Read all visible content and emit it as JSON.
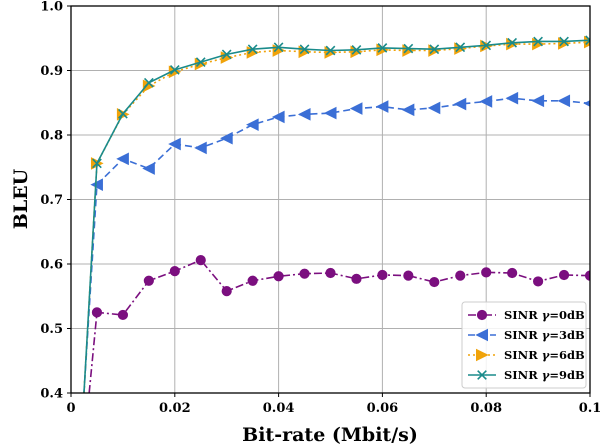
{
  "chart_data": {
    "type": "line",
    "xlabel": "Bit-rate (Mbit/s)",
    "ylabel": "BLEU",
    "xlim": [
      0,
      0.1
    ],
    "ylim": [
      0.4,
      1.0
    ],
    "xticks": [
      "0",
      "0.02",
      "0.04",
      "0.06",
      "0.08",
      "0.1"
    ],
    "yticks": [
      "0.4",
      "0.5",
      "0.6",
      "0.7",
      "0.8",
      "0.9",
      "1.0"
    ],
    "grid": true,
    "legend_position": "bottom-right",
    "series": [
      {
        "name": "SINR γ=0dB",
        "label_main": "SINR ",
        "label_gamma": "γ",
        "label_rest": "=0dB",
        "color": "#7b0f7f",
        "line_style": "dashdot",
        "marker": "circle",
        "x": [
          0.0035,
          0.005,
          0.01,
          0.015,
          0.02,
          0.025,
          0.03,
          0.035,
          0.04,
          0.045,
          0.05,
          0.055,
          0.06,
          0.065,
          0.07,
          0.075,
          0.08,
          0.085,
          0.09,
          0.095,
          0.1
        ],
        "y": [
          0.4,
          0.525,
          0.521,
          0.574,
          0.589,
          0.606,
          0.558,
          0.574,
          0.581,
          0.585,
          0.586,
          0.577,
          0.583,
          0.582,
          0.572,
          0.582,
          0.587,
          0.586,
          0.573,
          0.583,
          0.582
        ]
      },
      {
        "name": "SINR γ=3dB",
        "label_main": "SINR ",
        "label_gamma": "γ",
        "label_rest": "=3dB",
        "color": "#3b6fd6",
        "line_style": "dashed",
        "marker": "triangle-left",
        "x": [
          0.0025,
          0.005,
          0.01,
          0.015,
          0.02,
          0.025,
          0.03,
          0.035,
          0.04,
          0.045,
          0.05,
          0.055,
          0.06,
          0.065,
          0.07,
          0.075,
          0.08,
          0.085,
          0.09,
          0.095,
          0.1
        ],
        "y": [
          0.4,
          0.723,
          0.763,
          0.748,
          0.786,
          0.78,
          0.795,
          0.816,
          0.828,
          0.832,
          0.834,
          0.841,
          0.844,
          0.839,
          0.842,
          0.848,
          0.852,
          0.857,
          0.853,
          0.853,
          0.849
        ]
      },
      {
        "name": "SINR γ=6dB",
        "label_main": "SINR ",
        "label_gamma": "γ",
        "label_rest": "=6dB",
        "color": "#f0a30a",
        "line_style": "dotted",
        "marker": "triangle-right",
        "x": [
          0.0025,
          0.005,
          0.01,
          0.015,
          0.02,
          0.025,
          0.03,
          0.035,
          0.04,
          0.045,
          0.05,
          0.055,
          0.06,
          0.065,
          0.07,
          0.075,
          0.08,
          0.085,
          0.09,
          0.095,
          0.1
        ],
        "y": [
          0.4,
          0.756,
          0.832,
          0.876,
          0.898,
          0.91,
          0.92,
          0.928,
          0.931,
          0.929,
          0.928,
          0.929,
          0.932,
          0.931,
          0.931,
          0.934,
          0.938,
          0.941,
          0.941,
          0.942,
          0.944
        ]
      },
      {
        "name": "SINR γ=9dB",
        "label_main": "SINR ",
        "label_gamma": "γ",
        "label_rest": "=9dB",
        "color": "#1a8b8b",
        "line_style": "solid",
        "marker": "x",
        "x": [
          0.0025,
          0.005,
          0.01,
          0.015,
          0.02,
          0.025,
          0.03,
          0.035,
          0.04,
          0.045,
          0.05,
          0.055,
          0.06,
          0.065,
          0.07,
          0.075,
          0.08,
          0.085,
          0.09,
          0.095,
          0.1
        ],
        "y": [
          0.4,
          0.756,
          0.833,
          0.881,
          0.901,
          0.913,
          0.925,
          0.933,
          0.936,
          0.933,
          0.931,
          0.932,
          0.935,
          0.934,
          0.933,
          0.936,
          0.939,
          0.943,
          0.945,
          0.945,
          0.947
        ]
      }
    ]
  }
}
